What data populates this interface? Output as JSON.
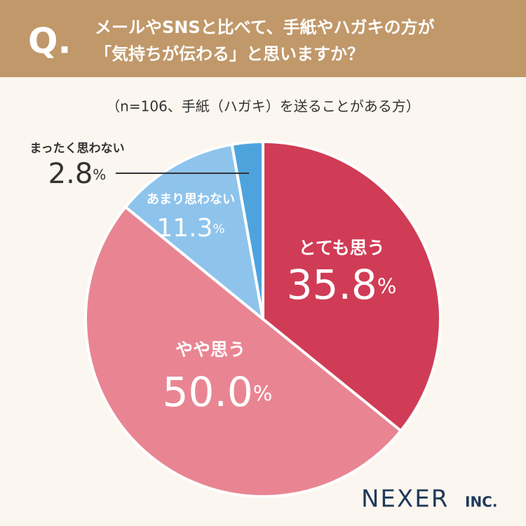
{
  "header": {
    "mark": "Q.",
    "question": [
      "メールやSNSと比べて、手紙やハガキの方が",
      "「気持ちが伝わる」と思いますか？"
    ]
  },
  "chart_data": {
    "type": "pie",
    "subtitle": "（n=106、手紙（ハガキ）を送ることがある方）",
    "categories": [
      "とても思う",
      "やや思う",
      "あまり思わない",
      "まったく思わない"
    ],
    "values": [
      35.8,
      50.0,
      11.3,
      2.8
    ],
    "value_labels": [
      "35.8",
      "50.0",
      "11.3",
      "2.8"
    ],
    "unit": "%",
    "colors": [
      "#d03c55",
      "#e98593",
      "#8ec4ec",
      "#4fa3dd"
    ]
  },
  "brand": {
    "name": "NEXER",
    "suffix": "INC."
  }
}
